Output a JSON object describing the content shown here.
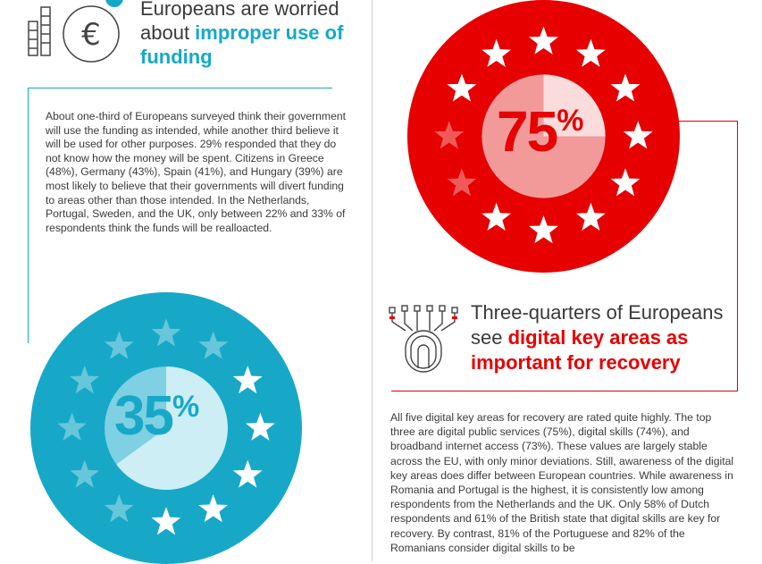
{
  "left_section": {
    "heading_prefix": "Europeans are worried about ",
    "heading_highlight": "improper use of funding",
    "icon_symbol": "€",
    "body": "About one-third of Europeans surveyed think their government will use the funding as intended, while another third believe it will be used for other purposes. 29% responded that they do not know how the money will be spent. Citizens in Greece (48%), Germany (43%), Spain (41%), and Hungary (39%) are most likely to believe that their governments will divert funding to areas other than those intended. In the Netherlands, Portugal, Sweden, and the UK, only between 22% and 33% of respondents think the funds will be realloacted.",
    "stat_value": "35",
    "stat_unit": "%",
    "stat_fraction": 0.35,
    "circle_color": "#17a8c8",
    "inner_color": "#7fd0e2",
    "highlight_color": "#cdeef5"
  },
  "right_section": {
    "stat_value": "75",
    "stat_unit": "%",
    "stat_fraction": 0.75,
    "circle_color": "#e60000",
    "inner_color": "#f29a9a",
    "highlight_color": "#fbdcdc",
    "heading_prefix": "Three-quarters of Europeans see ",
    "heading_highlight": "digital key areas as important for recovery",
    "body": "All five digital key areas for recovery are rated quite highly. The top three are digital public services (75%), digital skills (74%), and broadband internet access (73%). These values are largely stable across the EU, with only minor deviations. Still, awareness of the digital key areas does differ between European countries. While awareness in Romania and Portugal is the highest, it is consistently low among respondents from the Netherlands and the UK. Only 58% of Dutch respondents and 61% of the British state that digital skills are key for recovery. By contrast, 81% of the Portuguese and 82% of the Romanians consider digital skills to be"
  },
  "icons": {
    "left": "euro-coin-icon",
    "right": "fingerprint-circuit-icon",
    "stars": "eu-star-icon"
  }
}
